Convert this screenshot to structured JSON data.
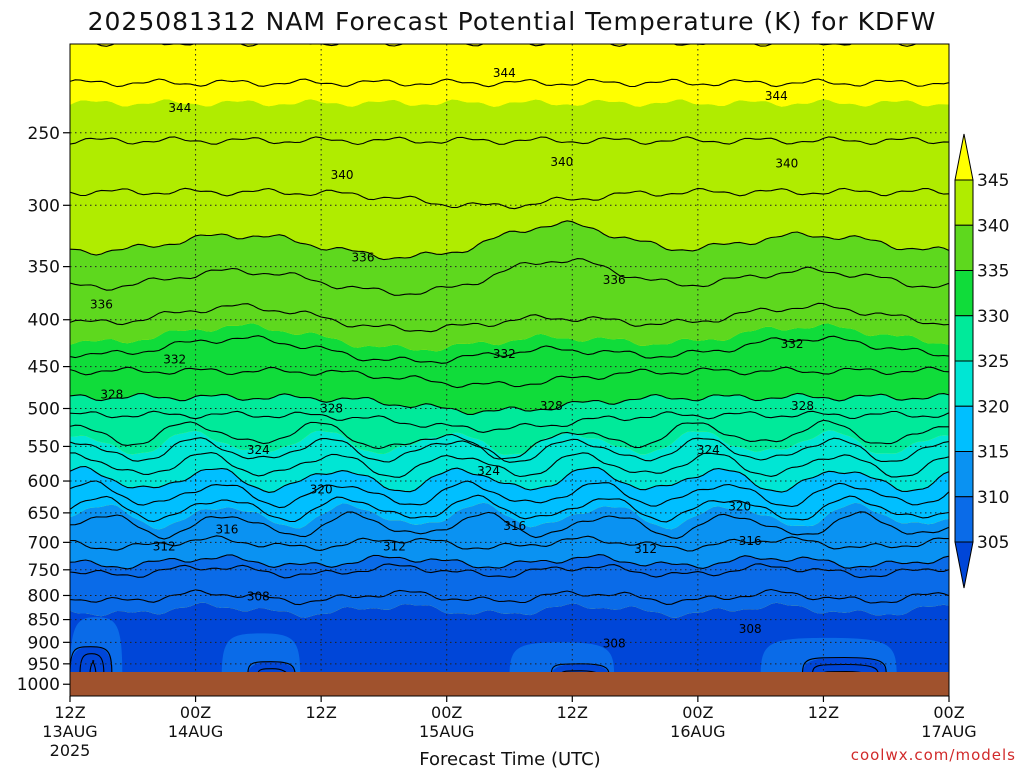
{
  "chart_data": {
    "type": "heatmap",
    "title": "2025081312 NAM Forecast Potential Temperature (K) for KDFW",
    "xlabel": "Forecast Time (UTC)",
    "ylabel": "",
    "y_scale": "log",
    "y_ticks": [
      250,
      300,
      350,
      400,
      450,
      500,
      550,
      600,
      650,
      700,
      750,
      800,
      850,
      900,
      950,
      1000
    ],
    "y_range": [
      200,
      1030
    ],
    "x_ticks": [
      {
        "hour": 0,
        "line1": "12Z",
        "line2": "13AUG",
        "line3": "2025"
      },
      {
        "hour": 12,
        "line1": "00Z",
        "line2": "14AUG",
        "line3": ""
      },
      {
        "hour": 24,
        "line1": "12Z",
        "line2": "",
        "line3": ""
      },
      {
        "hour": 36,
        "line1": "00Z",
        "line2": "15AUG",
        "line3": ""
      },
      {
        "hour": 48,
        "line1": "12Z",
        "line2": "",
        "line3": ""
      },
      {
        "hour": 60,
        "line1": "00Z",
        "line2": "16AUG",
        "line3": ""
      },
      {
        "hour": 72,
        "line1": "12Z",
        "line2": "",
        "line3": ""
      },
      {
        "hour": 84,
        "line1": "00Z",
        "line2": "17AUG",
        "line3": ""
      }
    ],
    "x_range": [
      0,
      84
    ],
    "grid": true,
    "levels": [
      300,
      305,
      310,
      315,
      320,
      325,
      330,
      335,
      340,
      345,
      350
    ],
    "level_colors": [
      "#0046d8",
      "#0a6be8",
      "#0a92f2",
      "#00bfff",
      "#00e6d4",
      "#00ea9a",
      "#10dc3a",
      "#5ed81e",
      "#b0ec00",
      "#ffff00"
    ],
    "legend": {
      "labels": [
        "345",
        "340",
        "335",
        "330",
        "325",
        "320",
        "315",
        "310",
        "305"
      ],
      "placement": "right"
    },
    "ground_color": "#a0522d",
    "contour_labels": [
      {
        "text": "344",
        "hour": 41.5,
        "pressure": 215
      },
      {
        "text": "344",
        "hour": 10.5,
        "pressure": 235
      },
      {
        "text": "344",
        "hour": 67.5,
        "pressure": 228
      },
      {
        "text": "340",
        "hour": 26,
        "pressure": 278
      },
      {
        "text": "340",
        "hour": 47,
        "pressure": 269
      },
      {
        "text": "340",
        "hour": 68.5,
        "pressure": 270
      },
      {
        "text": "336",
        "hour": 28,
        "pressure": 342
      },
      {
        "text": "336",
        "hour": 52,
        "pressure": 362
      },
      {
        "text": "336",
        "hour": 3,
        "pressure": 385
      },
      {
        "text": "332",
        "hour": 10,
        "pressure": 442
      },
      {
        "text": "332",
        "hour": 41.5,
        "pressure": 436
      },
      {
        "text": "332",
        "hour": 69,
        "pressure": 425
      },
      {
        "text": "328",
        "hour": 4,
        "pressure": 483
      },
      {
        "text": "328",
        "hour": 25,
        "pressure": 500
      },
      {
        "text": "328",
        "hour": 46,
        "pressure": 497
      },
      {
        "text": "328",
        "hour": 70,
        "pressure": 497
      },
      {
        "text": "324",
        "hour": 18,
        "pressure": 555
      },
      {
        "text": "324",
        "hour": 40,
        "pressure": 585
      },
      {
        "text": "324",
        "hour": 61,
        "pressure": 555
      },
      {
        "text": "320",
        "hour": 24,
        "pressure": 613
      },
      {
        "text": "320",
        "hour": 64,
        "pressure": 640
      },
      {
        "text": "316",
        "hour": 15,
        "pressure": 678
      },
      {
        "text": "316",
        "hour": 42.5,
        "pressure": 672
      },
      {
        "text": "316",
        "hour": 65,
        "pressure": 698
      },
      {
        "text": "312",
        "hour": 9,
        "pressure": 707
      },
      {
        "text": "312",
        "hour": 31,
        "pressure": 707
      },
      {
        "text": "312",
        "hour": 55,
        "pressure": 712
      },
      {
        "text": "308",
        "hour": 18,
        "pressure": 802
      },
      {
        "text": "308",
        "hour": 65,
        "pressure": 870
      },
      {
        "text": "308",
        "hour": 52,
        "pressure": 903
      }
    ]
  },
  "credit": "coolwx.com/models"
}
